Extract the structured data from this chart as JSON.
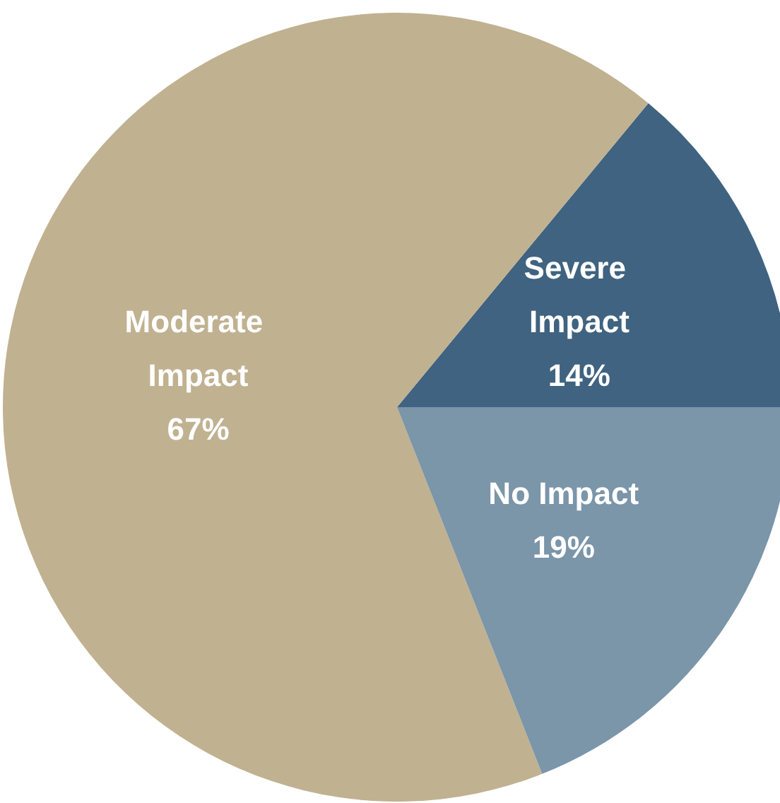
{
  "chart_data": {
    "type": "pie",
    "categories": [
      "Severe Impact",
      "Moderate Impact",
      "No Impact"
    ],
    "values": [
      14,
      67,
      19
    ],
    "colors": [
      "#3f6380",
      "#c0b190",
      "#7b95a9"
    ],
    "value_labels": [
      "14%",
      "67%",
      "19%"
    ]
  }
}
